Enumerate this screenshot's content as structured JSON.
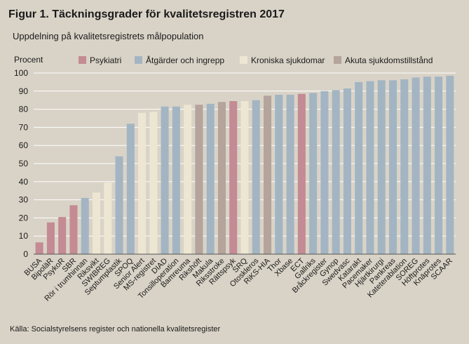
{
  "title": "Figur 1. Täckningsgrader för kvalitetsregistren 2017",
  "subtitle": "Uppdelning på kvalitetsregistrets målpopulation",
  "source": "Källa: Socialstyrelsens register och nationella kvalitetsregister",
  "colors": {
    "psykiatri": "#c48b94",
    "atgarder": "#a3b5c2",
    "kroniska": "#ede6d2",
    "akuta": "#b4a49c"
  },
  "chart_data": {
    "type": "bar",
    "ylabel": "Procent",
    "ylim": [
      0,
      100
    ],
    "yticks": [
      0,
      10,
      20,
      30,
      40,
      50,
      60,
      70,
      80,
      90,
      100
    ],
    "grid": true,
    "legend_position": "top",
    "legend": [
      {
        "key": "psykiatri",
        "label": "Psykiatri"
      },
      {
        "key": "atgarder",
        "label": "Åtgärder och ingrepp"
      },
      {
        "key": "kroniska",
        "label": "Kroniska sjukdomar"
      },
      {
        "key": "akuta",
        "label": "Akuta sjukdomstillstånd"
      }
    ],
    "bars": [
      {
        "label": "BUSA",
        "value": 6.5,
        "group": "psykiatri"
      },
      {
        "label": "BipoläR",
        "value": 17.5,
        "group": "psykiatri"
      },
      {
        "label": "PsykoR",
        "value": 20.5,
        "group": "psykiatri"
      },
      {
        "label": "SBR",
        "value": 27,
        "group": "psykiatri"
      },
      {
        "label": "Rör i trumhinnan",
        "value": 31,
        "group": "atgarder"
      },
      {
        "label": "Riksvikt",
        "value": 34,
        "group": "kroniska"
      },
      {
        "label": "SWIBREG",
        "value": 39.5,
        "group": "kroniska"
      },
      {
        "label": "Septumplastik",
        "value": 54,
        "group": "atgarder"
      },
      {
        "label": "SPOQ",
        "value": 72,
        "group": "atgarder"
      },
      {
        "label": "Senior Alert",
        "value": 78,
        "group": "kroniska"
      },
      {
        "label": "MS-registret",
        "value": 78.5,
        "group": "kroniska"
      },
      {
        "label": "DIAD",
        "value": 81.5,
        "group": "atgarder"
      },
      {
        "label": "Tonsilloperation",
        "value": 81.5,
        "group": "atgarder"
      },
      {
        "label": "Bamreuma",
        "value": 82.5,
        "group": "kroniska"
      },
      {
        "label": "Rikshöft",
        "value": 82.5,
        "group": "akuta"
      },
      {
        "label": "Makula",
        "value": 83,
        "group": "atgarder"
      },
      {
        "label": "Riksstroke",
        "value": 84,
        "group": "akuta"
      },
      {
        "label": "Rättspsyk",
        "value": 84.5,
        "group": "psykiatri"
      },
      {
        "label": "SRQ",
        "value": 84.5,
        "group": "kroniska"
      },
      {
        "label": "Otoskleros",
        "value": 85,
        "group": "atgarder"
      },
      {
        "label": "RiKS-HIA",
        "value": 87.5,
        "group": "akuta"
      },
      {
        "label": "Thor",
        "value": 88,
        "group": "atgarder"
      },
      {
        "label": "Xbase",
        "value": 88,
        "group": "atgarder"
      },
      {
        "label": "ECT",
        "value": 88.5,
        "group": "psykiatri"
      },
      {
        "label": "Gallriks",
        "value": 89,
        "group": "atgarder"
      },
      {
        "label": "Bråckregister",
        "value": 90,
        "group": "atgarder"
      },
      {
        "label": "Gynop",
        "value": 90.5,
        "group": "atgarder"
      },
      {
        "label": "Swedvasc",
        "value": 91.5,
        "group": "atgarder"
      },
      {
        "label": "Katarakt",
        "value": 95,
        "group": "atgarder"
      },
      {
        "label": "Pacemaker",
        "value": 95.5,
        "group": "atgarder"
      },
      {
        "label": "Hjärtkirurgi",
        "value": 96,
        "group": "atgarder"
      },
      {
        "label": "Pankreas",
        "value": 96,
        "group": "atgarder"
      },
      {
        "label": "Kateterablation",
        "value": 96.5,
        "group": "atgarder"
      },
      {
        "label": "SOREG",
        "value": 97.5,
        "group": "atgarder"
      },
      {
        "label": "Höftprotes",
        "value": 98,
        "group": "atgarder"
      },
      {
        "label": "Knäprotes",
        "value": 98,
        "group": "atgarder"
      },
      {
        "label": "SCAAR",
        "value": 98.5,
        "group": "atgarder"
      }
    ]
  }
}
